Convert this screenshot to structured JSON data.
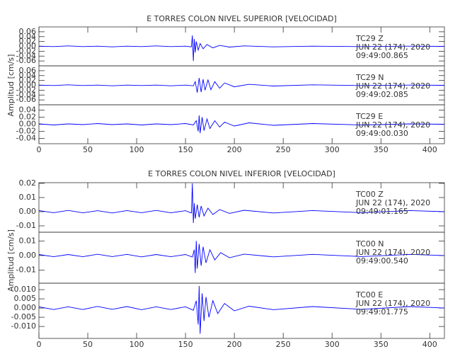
{
  "chart_data": [
    {
      "type": "line",
      "title": "E TORRES COLON NIVEL SUPERIOR [VELOCIDAD]",
      "ylabel": "Amplitud [cm/s]",
      "xlim": [
        0,
        415
      ],
      "xticks": [
        0,
        50,
        100,
        150,
        200,
        250,
        300,
        350,
        400
      ],
      "series": [
        {
          "name": "TC29   Z",
          "date": "JUN 22 (174), 2020",
          "time": "09:49:00.865",
          "color": "#0000ff",
          "ylim": [
            -0.08,
            0.08
          ],
          "yticks": [
            0.06,
            0.04,
            0.02,
            {
              "value": 0,
              "label": "0.00"
            },
            -0.02,
            -0.04,
            -0.06
          ],
          "x": [
            0,
            15,
            30,
            45,
            60,
            75,
            90,
            105,
            120,
            135,
            150,
            156,
            157,
            158,
            159,
            160,
            161,
            163,
            165,
            168,
            172,
            178,
            185,
            195,
            210,
            240,
            280,
            330,
            380,
            415
          ],
          "values": [
            0.001,
            -0.001,
            0.002,
            -0.001,
            0.001,
            -0.002,
            0.001,
            -0.001,
            0.002,
            -0.001,
            0.001,
            -0.002,
            0.045,
            -0.06,
            0.03,
            -0.025,
            0.02,
            -0.015,
            0.012,
            -0.01,
            0.008,
            -0.006,
            0.004,
            -0.003,
            0.002,
            -0.002,
            0.001,
            -0.001,
            0.001,
            0
          ]
        },
        {
          "name": "TC29   N",
          "date": "JUN 22 (174), 2020",
          "time": "09:49:02.085",
          "color": "#0000ff",
          "ylim": [
            -0.08,
            0.08
          ],
          "yticks": [
            0.06,
            0.04,
            0.02,
            {
              "value": 0,
              "label": "0.00"
            },
            -0.02,
            -0.04,
            -0.06
          ],
          "x": [
            0,
            15,
            30,
            45,
            60,
            75,
            90,
            105,
            120,
            135,
            150,
            158,
            160,
            162,
            164,
            166,
            168,
            170,
            173,
            176,
            180,
            185,
            190,
            200,
            215,
            240,
            280,
            330,
            380,
            415
          ],
          "values": [
            0.001,
            -0.001,
            0.002,
            -0.001,
            0.001,
            -0.002,
            0.001,
            -0.001,
            0.001,
            -0.002,
            0.001,
            -0.002,
            0.015,
            -0.03,
            0.03,
            -0.028,
            0.025,
            -0.02,
            0.022,
            -0.018,
            0.015,
            -0.012,
            0.01,
            -0.006,
            0.004,
            -0.003,
            0.002,
            -0.001,
            0.001,
            0
          ]
        },
        {
          "name": "TC29   E",
          "date": "JUN 22 (174), 2020",
          "time": "09:49:00.030",
          "color": "#0000ff",
          "ylim": [
            -0.055,
            0.055
          ],
          "yticks": [
            0.04,
            0.02,
            {
              "value": 0,
              "label": "0.00"
            },
            -0.02,
            -0.04
          ],
          "x": [
            0,
            15,
            30,
            45,
            60,
            75,
            90,
            105,
            120,
            135,
            150,
            158,
            161,
            163,
            164,
            165,
            167,
            169,
            172,
            175,
            180,
            185,
            190,
            200,
            215,
            240,
            280,
            330,
            380,
            415
          ],
          "values": [
            0.001,
            -0.002,
            0.001,
            -0.001,
            0.002,
            -0.001,
            0.001,
            -0.002,
            0.001,
            -0.001,
            0.002,
            -0.002,
            0.01,
            -0.02,
            0.025,
            -0.025,
            0.02,
            -0.018,
            0.015,
            -0.012,
            0.01,
            -0.008,
            0.006,
            -0.005,
            0.004,
            -0.003,
            0.002,
            -0.002,
            0.001,
            0
          ]
        }
      ]
    },
    {
      "type": "line",
      "title": "E TORRES COLON NIVEL INFERIOR [VELOCIDAD]",
      "ylabel": "Amplitud  [cm/s]",
      "xlim": [
        0,
        415
      ],
      "xticks": [
        0,
        50,
        100,
        150,
        200,
        250,
        300,
        350,
        400
      ],
      "series": [
        {
          "name": "TC00   Z",
          "date": "JUN 22 (174), 2020",
          "time": "09:49:01.165",
          "color": "#0000ff",
          "ylim": [
            -0.0145,
            0.0205
          ],
          "yticks": [
            0.02,
            0.01,
            {
              "value": 0,
              "label": "0.00"
            },
            -0.01
          ],
          "x": [
            0,
            15,
            30,
            45,
            60,
            75,
            90,
            105,
            120,
            135,
            150,
            156,
            157,
            158,
            159,
            160,
            162,
            164,
            166,
            169,
            173,
            178,
            185,
            195,
            210,
            240,
            280,
            330,
            380,
            415
          ],
          "values": [
            0.0008,
            -0.0007,
            0.0009,
            -0.0008,
            0.0007,
            -0.0009,
            0.0008,
            -0.0007,
            0.0009,
            -0.0008,
            0.0007,
            -0.0009,
            0.02,
            -0.008,
            0.006,
            -0.005,
            0.005,
            -0.004,
            0.004,
            -0.003,
            0.0025,
            -0.002,
            0.0015,
            -0.0012,
            0.001,
            -0.0009,
            0.0008,
            -0.0007,
            0.0008,
            0
          ]
        },
        {
          "name": "TC00   N",
          "date": "JUN 22 (174), 2020",
          "time": "09:49:00.540",
          "color": "#0000ff",
          "ylim": [
            -0.019,
            0.016
          ],
          "yticks": [
            0.01,
            {
              "value": 0,
              "label": "0.00"
            },
            -0.01
          ],
          "x": [
            0,
            15,
            30,
            45,
            60,
            75,
            90,
            105,
            120,
            135,
            150,
            157,
            159,
            160,
            161,
            162,
            164,
            166,
            168,
            171,
            175,
            180,
            186,
            195,
            210,
            240,
            280,
            330,
            380,
            415
          ],
          "values": [
            0.0007,
            -0.0008,
            0.0007,
            -0.0008,
            0.0009,
            -0.0007,
            0.0008,
            -0.0009,
            0.0007,
            -0.0008,
            0.0007,
            -0.001,
            0.004,
            -0.012,
            0.01,
            -0.009,
            0.008,
            -0.007,
            0.006,
            -0.005,
            0.004,
            -0.003,
            0.002,
            -0.0015,
            0.001,
            -0.0009,
            0.0008,
            -0.0007,
            0.0008,
            0
          ]
        },
        {
          "name": "TC00   E",
          "date": "JUN 22 (174), 2020",
          "time": "09:49:01.775",
          "color": "#0000ff",
          "ylim": [
            -0.0165,
            0.0135
          ],
          "yticks": [
            {
              "value": 0.01,
              "label": "0.010"
            },
            0.005,
            {
              "value": 0,
              "label": "0.000"
            },
            -0.005,
            {
              "value": -0.01,
              "label": "-0.010"
            }
          ],
          "x": [
            0,
            15,
            30,
            45,
            60,
            75,
            90,
            105,
            120,
            135,
            150,
            158,
            161,
            163,
            164,
            165,
            167,
            169,
            171,
            174,
            178,
            183,
            190,
            200,
            215,
            240,
            280,
            330,
            380,
            415
          ],
          "values": [
            0.0007,
            -0.0008,
            0.0007,
            -0.0008,
            0.0009,
            -0.0007,
            0.0008,
            -0.0009,
            0.0007,
            -0.0008,
            0.0007,
            -0.0012,
            0.004,
            -0.009,
            0.012,
            -0.014,
            0.008,
            -0.007,
            0.006,
            -0.005,
            0.004,
            -0.003,
            0.0025,
            -0.0015,
            0.001,
            -0.0009,
            0.0008,
            -0.0007,
            0.0008,
            0
          ]
        }
      ]
    }
  ]
}
